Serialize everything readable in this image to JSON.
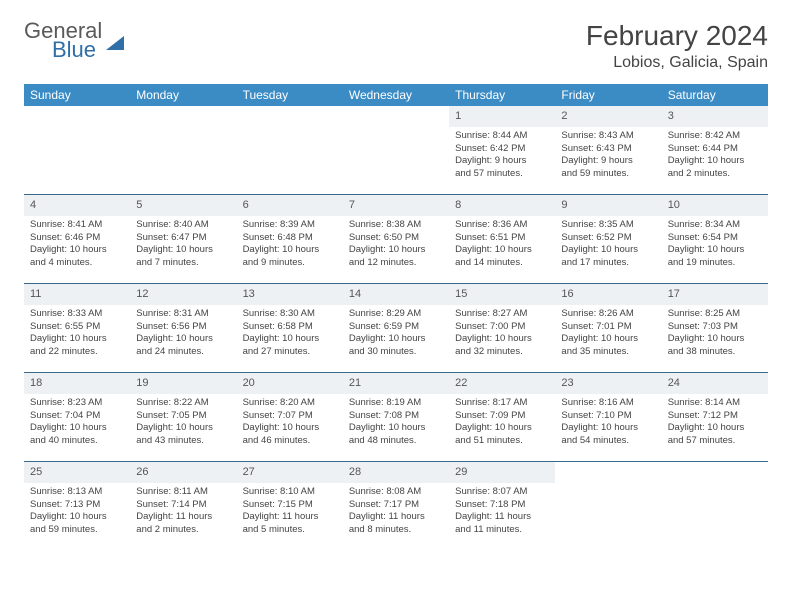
{
  "brand": {
    "line1": "General",
    "line2": "Blue"
  },
  "header": {
    "title": "February 2024",
    "location": "Lobios, Galicia, Spain"
  },
  "styling": {
    "header_bg": "#3b8bc5",
    "header_fg": "#ffffff",
    "daynum_bg": "#eef1f3",
    "row_border": "#3b6a8f",
    "title_color": "#444444",
    "body_text": "#444444",
    "logo_accent": "#2f6fa8",
    "page_bg": "#ffffff",
    "title_fontsize": 28,
    "location_fontsize": 16,
    "th_fontsize": 12,
    "cell_fontsize": 9.5
  },
  "day_labels": [
    "Sunday",
    "Monday",
    "Tuesday",
    "Wednesday",
    "Thursday",
    "Friday",
    "Saturday"
  ],
  "grid": [
    [
      null,
      null,
      null,
      null,
      {
        "n": "1",
        "sr": "Sunrise: 8:44 AM",
        "ss": "Sunset: 6:42 PM",
        "d1": "Daylight: 9 hours",
        "d2": "and 57 minutes."
      },
      {
        "n": "2",
        "sr": "Sunrise: 8:43 AM",
        "ss": "Sunset: 6:43 PM",
        "d1": "Daylight: 9 hours",
        "d2": "and 59 minutes."
      },
      {
        "n": "3",
        "sr": "Sunrise: 8:42 AM",
        "ss": "Sunset: 6:44 PM",
        "d1": "Daylight: 10 hours",
        "d2": "and 2 minutes."
      }
    ],
    [
      {
        "n": "4",
        "sr": "Sunrise: 8:41 AM",
        "ss": "Sunset: 6:46 PM",
        "d1": "Daylight: 10 hours",
        "d2": "and 4 minutes."
      },
      {
        "n": "5",
        "sr": "Sunrise: 8:40 AM",
        "ss": "Sunset: 6:47 PM",
        "d1": "Daylight: 10 hours",
        "d2": "and 7 minutes."
      },
      {
        "n": "6",
        "sr": "Sunrise: 8:39 AM",
        "ss": "Sunset: 6:48 PM",
        "d1": "Daylight: 10 hours",
        "d2": "and 9 minutes."
      },
      {
        "n": "7",
        "sr": "Sunrise: 8:38 AM",
        "ss": "Sunset: 6:50 PM",
        "d1": "Daylight: 10 hours",
        "d2": "and 12 minutes."
      },
      {
        "n": "8",
        "sr": "Sunrise: 8:36 AM",
        "ss": "Sunset: 6:51 PM",
        "d1": "Daylight: 10 hours",
        "d2": "and 14 minutes."
      },
      {
        "n": "9",
        "sr": "Sunrise: 8:35 AM",
        "ss": "Sunset: 6:52 PM",
        "d1": "Daylight: 10 hours",
        "d2": "and 17 minutes."
      },
      {
        "n": "10",
        "sr": "Sunrise: 8:34 AM",
        "ss": "Sunset: 6:54 PM",
        "d1": "Daylight: 10 hours",
        "d2": "and 19 minutes."
      }
    ],
    [
      {
        "n": "11",
        "sr": "Sunrise: 8:33 AM",
        "ss": "Sunset: 6:55 PM",
        "d1": "Daylight: 10 hours",
        "d2": "and 22 minutes."
      },
      {
        "n": "12",
        "sr": "Sunrise: 8:31 AM",
        "ss": "Sunset: 6:56 PM",
        "d1": "Daylight: 10 hours",
        "d2": "and 24 minutes."
      },
      {
        "n": "13",
        "sr": "Sunrise: 8:30 AM",
        "ss": "Sunset: 6:58 PM",
        "d1": "Daylight: 10 hours",
        "d2": "and 27 minutes."
      },
      {
        "n": "14",
        "sr": "Sunrise: 8:29 AM",
        "ss": "Sunset: 6:59 PM",
        "d1": "Daylight: 10 hours",
        "d2": "and 30 minutes."
      },
      {
        "n": "15",
        "sr": "Sunrise: 8:27 AM",
        "ss": "Sunset: 7:00 PM",
        "d1": "Daylight: 10 hours",
        "d2": "and 32 minutes."
      },
      {
        "n": "16",
        "sr": "Sunrise: 8:26 AM",
        "ss": "Sunset: 7:01 PM",
        "d1": "Daylight: 10 hours",
        "d2": "and 35 minutes."
      },
      {
        "n": "17",
        "sr": "Sunrise: 8:25 AM",
        "ss": "Sunset: 7:03 PM",
        "d1": "Daylight: 10 hours",
        "d2": "and 38 minutes."
      }
    ],
    [
      {
        "n": "18",
        "sr": "Sunrise: 8:23 AM",
        "ss": "Sunset: 7:04 PM",
        "d1": "Daylight: 10 hours",
        "d2": "and 40 minutes."
      },
      {
        "n": "19",
        "sr": "Sunrise: 8:22 AM",
        "ss": "Sunset: 7:05 PM",
        "d1": "Daylight: 10 hours",
        "d2": "and 43 minutes."
      },
      {
        "n": "20",
        "sr": "Sunrise: 8:20 AM",
        "ss": "Sunset: 7:07 PM",
        "d1": "Daylight: 10 hours",
        "d2": "and 46 minutes."
      },
      {
        "n": "21",
        "sr": "Sunrise: 8:19 AM",
        "ss": "Sunset: 7:08 PM",
        "d1": "Daylight: 10 hours",
        "d2": "and 48 minutes."
      },
      {
        "n": "22",
        "sr": "Sunrise: 8:17 AM",
        "ss": "Sunset: 7:09 PM",
        "d1": "Daylight: 10 hours",
        "d2": "and 51 minutes."
      },
      {
        "n": "23",
        "sr": "Sunrise: 8:16 AM",
        "ss": "Sunset: 7:10 PM",
        "d1": "Daylight: 10 hours",
        "d2": "and 54 minutes."
      },
      {
        "n": "24",
        "sr": "Sunrise: 8:14 AM",
        "ss": "Sunset: 7:12 PM",
        "d1": "Daylight: 10 hours",
        "d2": "and 57 minutes."
      }
    ],
    [
      {
        "n": "25",
        "sr": "Sunrise: 8:13 AM",
        "ss": "Sunset: 7:13 PM",
        "d1": "Daylight: 10 hours",
        "d2": "and 59 minutes."
      },
      {
        "n": "26",
        "sr": "Sunrise: 8:11 AM",
        "ss": "Sunset: 7:14 PM",
        "d1": "Daylight: 11 hours",
        "d2": "and 2 minutes."
      },
      {
        "n": "27",
        "sr": "Sunrise: 8:10 AM",
        "ss": "Sunset: 7:15 PM",
        "d1": "Daylight: 11 hours",
        "d2": "and 5 minutes."
      },
      {
        "n": "28",
        "sr": "Sunrise: 8:08 AM",
        "ss": "Sunset: 7:17 PM",
        "d1": "Daylight: 11 hours",
        "d2": "and 8 minutes."
      },
      {
        "n": "29",
        "sr": "Sunrise: 8:07 AM",
        "ss": "Sunset: 7:18 PM",
        "d1": "Daylight: 11 hours",
        "d2": "and 11 minutes."
      },
      null,
      null
    ]
  ]
}
